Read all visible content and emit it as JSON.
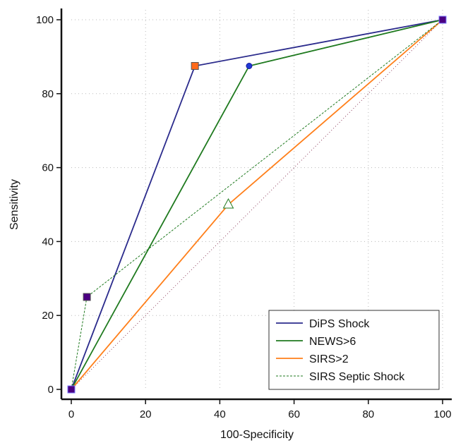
{
  "chart_data": {
    "type": "line",
    "xlabel": "100-Specificity",
    "ylabel": "Sensitivity",
    "xlim": [
      0,
      100
    ],
    "ylim": [
      0,
      100
    ],
    "xticks": [
      0,
      20,
      40,
      60,
      80,
      100
    ],
    "yticks": [
      0,
      20,
      40,
      60,
      80,
      100
    ],
    "grid": true,
    "legend_position": "bottom-right",
    "diagonal_reference": {
      "x": [
        0,
        100
      ],
      "y": [
        0,
        100
      ],
      "color": "#8b3a5a",
      "style": "dotted"
    },
    "series": [
      {
        "name": "DiPS Shock",
        "color": "#2b2b8c",
        "style": "solid",
        "marker": "square",
        "marker_color": "#ff6a1a",
        "x": [
          0,
          33.3,
          100
        ],
        "y": [
          0,
          87.5,
          100
        ]
      },
      {
        "name": "NEWS>6",
        "color": "#1f7a1f",
        "style": "solid",
        "marker": "circle",
        "marker_color": "#1f3ad6",
        "x": [
          0,
          47.9,
          100
        ],
        "y": [
          0,
          87.5,
          100
        ]
      },
      {
        "name": "SIRS>2",
        "color": "#ff7f1a",
        "style": "solid",
        "marker": "triangle",
        "marker_color": "#ffffff",
        "x": [
          0,
          42.3,
          100
        ],
        "y": [
          0,
          50,
          100
        ]
      },
      {
        "name": "SIRS Septic Shock",
        "color": "#1f7a1f",
        "style": "dashed",
        "marker": "square",
        "marker_color": "#4b0082",
        "x": [
          0,
          4.2,
          100
        ],
        "y": [
          0,
          25,
          100
        ]
      }
    ]
  }
}
